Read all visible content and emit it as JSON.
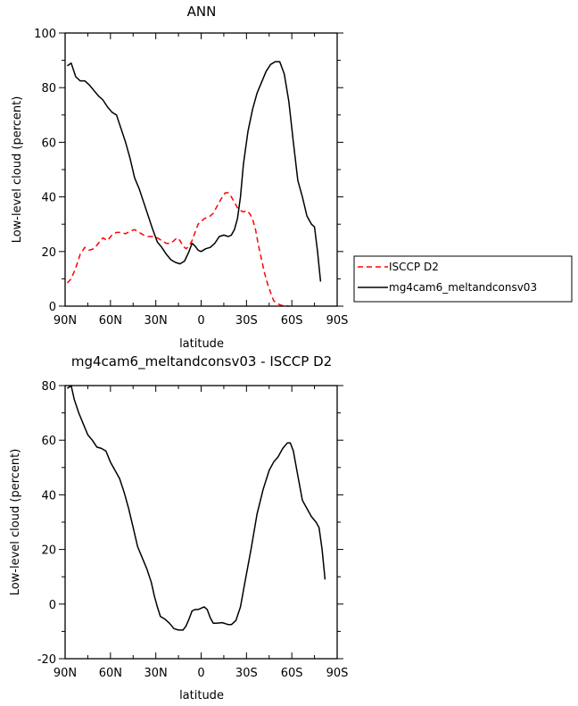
{
  "chart_data": [
    {
      "type": "line",
      "title": "ANN",
      "xlabel": "latitude",
      "ylabel": "Low-level cloud (percent)",
      "xlim": [
        90,
        -90
      ],
      "ylim": [
        0,
        100
      ],
      "x_ticks": [
        90,
        60,
        30,
        0,
        -30,
        -60,
        -90
      ],
      "x_tick_labels": [
        "90N",
        "60N",
        "30N",
        "0",
        "30S",
        "60S",
        "90S"
      ],
      "y_ticks": [
        0,
        20,
        40,
        60,
        80,
        100
      ],
      "y_tick_labels": [
        "0",
        "20",
        "40",
        "60",
        "80",
        "100"
      ],
      "legend_position": "right",
      "series": [
        {
          "name": "ISCCP D2",
          "color": "#ff0000",
          "dash": true,
          "points": [
            [
              88.5,
              8.5
            ],
            [
              86,
              10
            ],
            [
              83,
              14
            ],
            [
              80,
              19
            ],
            [
              77,
              21.5
            ],
            [
              74,
              20.5
            ],
            [
              71,
              21
            ],
            [
              68,
              23
            ],
            [
              65,
              25
            ],
            [
              62,
              24
            ],
            [
              59,
              26
            ],
            [
              56,
              27
            ],
            [
              53,
              27
            ],
            [
              50,
              26.5
            ],
            [
              47,
              27.5
            ],
            [
              44,
              28
            ],
            [
              41,
              27
            ],
            [
              38,
              26
            ],
            [
              35,
              25.5
            ],
            [
              32,
              25.5
            ],
            [
              29,
              25
            ],
            [
              26,
              24
            ],
            [
              23,
              23
            ],
            [
              20,
              23
            ],
            [
              18,
              24
            ],
            [
              16,
              25
            ],
            [
              14,
              24
            ],
            [
              12,
              22
            ],
            [
              10,
              21
            ],
            [
              8,
              22
            ],
            [
              6,
              24
            ],
            [
              4,
              27
            ],
            [
              2,
              30
            ],
            [
              0,
              31
            ],
            [
              -2,
              32
            ],
            [
              -4,
              32.5
            ],
            [
              -6,
              33
            ],
            [
              -8,
              34
            ],
            [
              -10,
              36
            ],
            [
              -12,
              38
            ],
            [
              -14,
              40
            ],
            [
              -16,
              41.5
            ],
            [
              -18,
              41.5
            ],
            [
              -20,
              40
            ],
            [
              -22,
              38
            ],
            [
              -24,
              36
            ],
            [
              -26,
              35
            ],
            [
              -28,
              34.5
            ],
            [
              -30,
              35
            ],
            [
              -32,
              34
            ],
            [
              -34,
              32
            ],
            [
              -36,
              28
            ],
            [
              -38,
              22
            ],
            [
              -40,
              17
            ],
            [
              -42,
              12
            ],
            [
              -44,
              8
            ],
            [
              -46,
              5
            ],
            [
              -48,
              2
            ],
            [
              -50,
              1
            ],
            [
              -53,
              0.3
            ],
            [
              -56,
              0.1
            ],
            [
              -58,
              0
            ]
          ]
        },
        {
          "name": "mg4cam6_meltandconsv03",
          "color": "#000000",
          "dash": false,
          "points": [
            [
              88.5,
              88
            ],
            [
              86,
              89
            ],
            [
              83,
              84
            ],
            [
              80,
              82.5
            ],
            [
              77,
              82.5
            ],
            [
              74,
              81
            ],
            [
              71,
              79
            ],
            [
              68,
              77
            ],
            [
              65,
              75.5
            ],
            [
              62,
              73
            ],
            [
              59,
              71
            ],
            [
              56,
              70
            ],
            [
              53,
              65
            ],
            [
              50,
              60
            ],
            [
              47,
              54
            ],
            [
              44,
              47
            ],
            [
              41,
              43
            ],
            [
              38,
              38
            ],
            [
              35,
              33
            ],
            [
              32,
              28
            ],
            [
              29,
              23.5
            ],
            [
              26,
              21.5
            ],
            [
              23,
              19
            ],
            [
              20,
              17
            ],
            [
              17,
              16
            ],
            [
              14,
              15.5
            ],
            [
              11,
              16.5
            ],
            [
              8,
              20
            ],
            [
              6,
              23
            ],
            [
              4,
              22
            ],
            [
              2,
              20.5
            ],
            [
              0,
              20
            ],
            [
              -3,
              21
            ],
            [
              -6,
              21.5
            ],
            [
              -9,
              23
            ],
            [
              -12,
              25.5
            ],
            [
              -15,
              26
            ],
            [
              -18,
              25.5
            ],
            [
              -20,
              26
            ],
            [
              -22,
              28
            ],
            [
              -24,
              32
            ],
            [
              -26,
              40
            ],
            [
              -28,
              52
            ],
            [
              -31,
              64
            ],
            [
              -34,
              72
            ],
            [
              -37,
              78
            ],
            [
              -40,
              82
            ],
            [
              -43,
              86
            ],
            [
              -46,
              88.5
            ],
            [
              -49,
              89.5
            ],
            [
              -52,
              89.5
            ],
            [
              -55,
              85
            ],
            [
              -58,
              75
            ],
            [
              -61,
              60
            ],
            [
              -64,
              46
            ],
            [
              -67,
              40
            ],
            [
              -70,
              33
            ],
            [
              -73,
              30
            ],
            [
              -75,
              29
            ],
            [
              -77,
              20
            ],
            [
              -79,
              9
            ]
          ]
        }
      ]
    },
    {
      "type": "line",
      "title": "mg4cam6_meltandconsv03 - ISCCP D2",
      "xlabel": "latitude",
      "ylabel": "Low-level cloud (percent)",
      "xlim": [
        90,
        -90
      ],
      "ylim": [
        -20,
        80
      ],
      "x_ticks": [
        90,
        60,
        30,
        0,
        -30,
        -60,
        -90
      ],
      "x_tick_labels": [
        "90N",
        "60N",
        "30N",
        "0",
        "30S",
        "60S",
        "90S"
      ],
      "y_ticks": [
        -20,
        0,
        20,
        40,
        60,
        80
      ],
      "y_tick_labels": [
        "-20",
        "0",
        "20",
        "40",
        "60",
        "80"
      ],
      "series": [
        {
          "color": "#000000",
          "dash": false,
          "points": [
            [
              88.5,
              79
            ],
            [
              86,
              80
            ],
            [
              84,
              75
            ],
            [
              81,
              70
            ],
            [
              78,
              66
            ],
            [
              75,
              62
            ],
            [
              72,
              60
            ],
            [
              69,
              57.5
            ],
            [
              66,
              57
            ],
            [
              63,
              56
            ],
            [
              60,
              52
            ],
            [
              57,
              49
            ],
            [
              54,
              46
            ],
            [
              51,
              41
            ],
            [
              48,
              35
            ],
            [
              45,
              28
            ],
            [
              42,
              21
            ],
            [
              39,
              17
            ],
            [
              36,
              13
            ],
            [
              33,
              8
            ],
            [
              31,
              3
            ],
            [
              29,
              -1
            ],
            [
              27,
              -4.5
            ],
            [
              24,
              -5.5
            ],
            [
              21,
              -7
            ],
            [
              18,
              -9
            ],
            [
              15,
              -9.5
            ],
            [
              12,
              -9.5
            ],
            [
              10,
              -8
            ],
            [
              8,
              -5.5
            ],
            [
              6,
              -2.5
            ],
            [
              4,
              -2
            ],
            [
              2,
              -2
            ],
            [
              0,
              -1.5
            ],
            [
              -2,
              -1
            ],
            [
              -4,
              -2
            ],
            [
              -6,
              -5
            ],
            [
              -8,
              -7
            ],
            [
              -10,
              -7
            ],
            [
              -14,
              -6.8
            ],
            [
              -18,
              -7.5
            ],
            [
              -20,
              -7.5
            ],
            [
              -23,
              -6
            ],
            [
              -26,
              -1
            ],
            [
              -29,
              8
            ],
            [
              -33,
              20
            ],
            [
              -37,
              33
            ],
            [
              -41,
              42
            ],
            [
              -45,
              49
            ],
            [
              -48,
              52
            ],
            [
              -51,
              54
            ],
            [
              -54,
              57
            ],
            [
              -57,
              59
            ],
            [
              -59,
              59
            ],
            [
              -61,
              56
            ],
            [
              -64,
              47
            ],
            [
              -67,
              38
            ],
            [
              -70,
              35
            ],
            [
              -73,
              32
            ],
            [
              -76,
              30
            ],
            [
              -78,
              28
            ],
            [
              -80,
              20
            ],
            [
              -82,
              9
            ]
          ]
        }
      ]
    }
  ]
}
